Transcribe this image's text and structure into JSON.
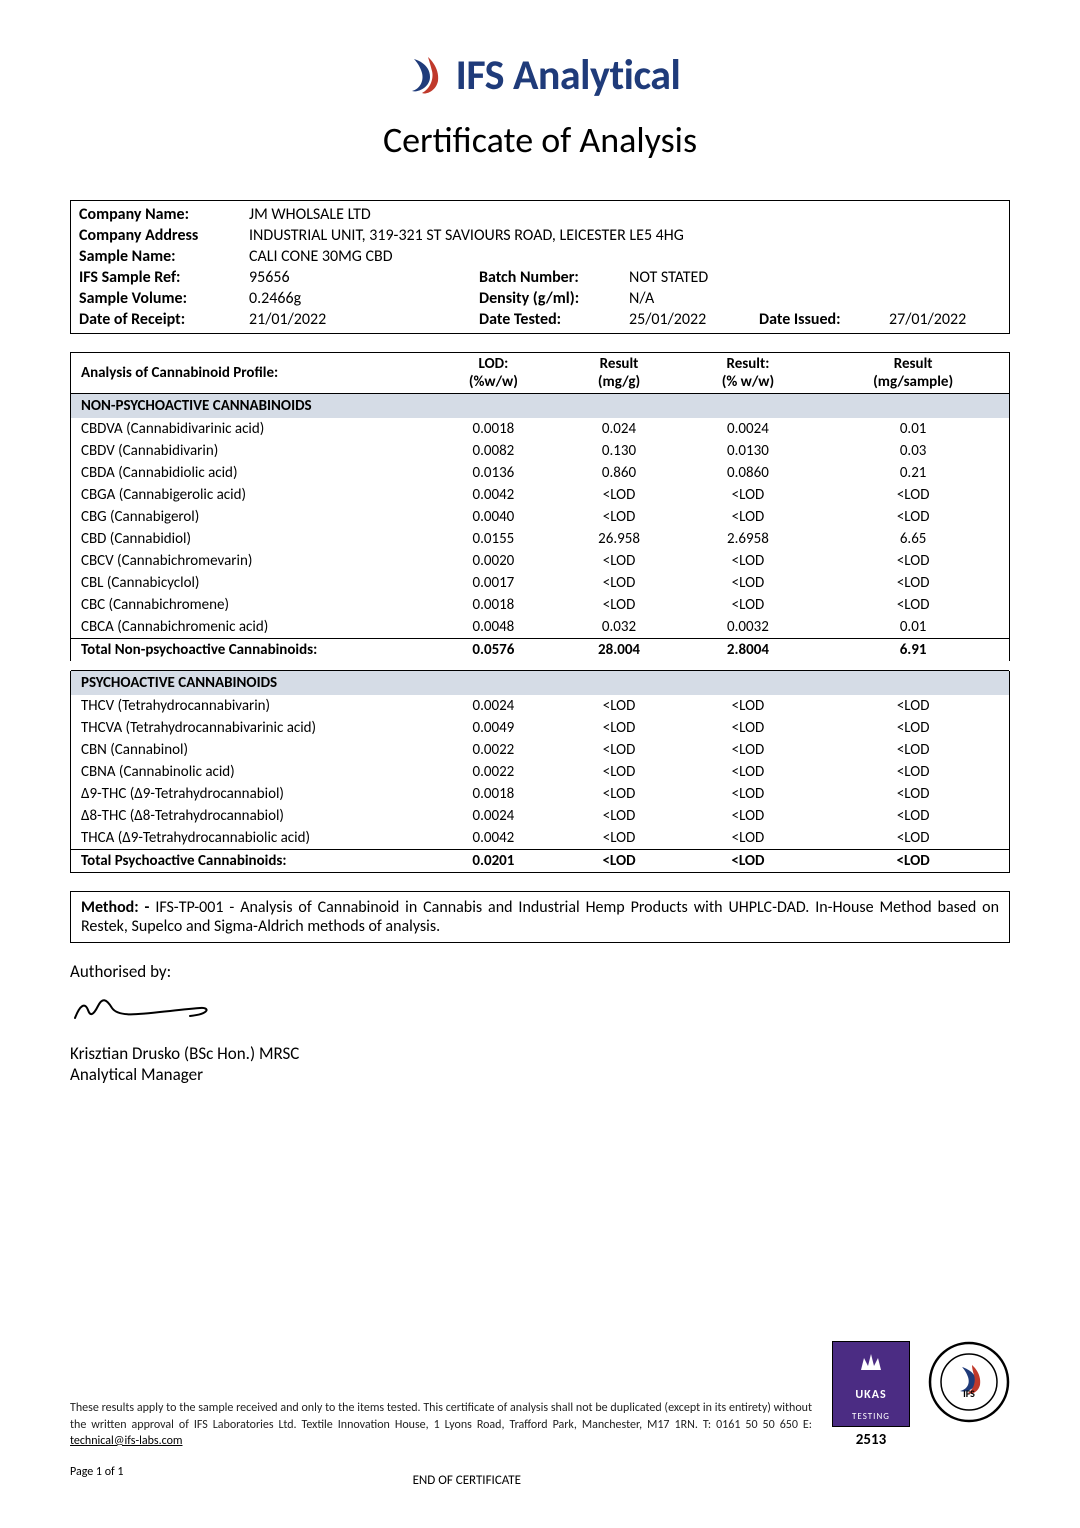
{
  "header": {
    "brand": "IFS Analytical",
    "subtitle": "Certificate of Analysis"
  },
  "info": {
    "company_name_label": "Company Name:",
    "company_name": "JM WHOLSALE LTD",
    "company_address_label": "Company Address",
    "company_address": "INDUSTRIAL UNIT, 319-321 ST SAVIOURS ROAD, LEICESTER LE5 4HG",
    "sample_name_label": "Sample Name:",
    "sample_name": "CALI CONE 30MG CBD",
    "ifs_ref_label": "IFS Sample Ref:",
    "ifs_ref": "95656",
    "batch_label": "Batch Number:",
    "batch": "NOT STATED",
    "volume_label": "Sample Volume:",
    "volume": "0.2466g",
    "density_label": "Density (g/ml):",
    "density": "N/A",
    "receipt_label": "Date of Receipt:",
    "receipt": "21/01/2022",
    "tested_label": "Date Tested:",
    "tested": "25/01/2022",
    "issued_label": "Date Issued:",
    "issued": "27/01/2022"
  },
  "table": {
    "title": "Analysis of Cannabinoid Profile:",
    "cols": {
      "lod_a": "LOD:",
      "lod_b": "(%w/w)",
      "r1_a": "Result",
      "r1_b": "(mg/g)",
      "r2_a": "Result:",
      "r2_b": "(% w/w)",
      "r3_a": "Result",
      "r3_b": "(mg/sample)"
    },
    "section1": "NON-PSYCHOACTIVE CANNABINOIDS",
    "rows1": [
      {
        "n": "CBDVA (Cannabidivarinic acid)",
        "lod": "0.0018",
        "a": "0.024",
        "b": "0.0024",
        "c": "0.01"
      },
      {
        "n": "CBDV (Cannabidivarin)",
        "lod": "0.0082",
        "a": "0.130",
        "b": "0.0130",
        "c": "0.03"
      },
      {
        "n": "CBDA (Cannabidiolic acid)",
        "lod": "0.0136",
        "a": "0.860",
        "b": "0.0860",
        "c": "0.21"
      },
      {
        "n": "CBGA (Cannabigerolic acid)",
        "lod": "0.0042",
        "a": "<LOD",
        "b": "<LOD",
        "c": "<LOD"
      },
      {
        "n": "CBG (Cannabigerol)",
        "lod": "0.0040",
        "a": "<LOD",
        "b": "<LOD",
        "c": "<LOD"
      },
      {
        "n": "CBD (Cannabidiol)",
        "lod": "0.0155",
        "a": "26.958",
        "b": "2.6958",
        "c": "6.65"
      },
      {
        "n": "CBCV (Cannabichromevarin)",
        "lod": "0.0020",
        "a": "<LOD",
        "b": "<LOD",
        "c": "<LOD"
      },
      {
        "n": "CBL (Cannabicyclol)",
        "lod": "0.0017",
        "a": "<LOD",
        "b": "<LOD",
        "c": "<LOD"
      },
      {
        "n": "CBC (Cannabichromene)",
        "lod": "0.0018",
        "a": "<LOD",
        "b": "<LOD",
        "c": "<LOD"
      },
      {
        "n": "CBCA (Cannabichromenic acid)",
        "lod": "0.0048",
        "a": "0.032",
        "b": "0.0032",
        "c": "0.01"
      }
    ],
    "total1": {
      "n": "Total Non-psychoactive Cannabinoids:",
      "lod": "0.0576",
      "a": "28.004",
      "b": "2.8004",
      "c": "6.91"
    },
    "section2": "PSYCHOACTIVE CANNABINOIDS",
    "rows2": [
      {
        "n": "THCV (Tetrahydrocannabivarin)",
        "lod": "0.0024",
        "a": "<LOD",
        "b": "<LOD",
        "c": "<LOD"
      },
      {
        "n": "THCVA (Tetrahydrocannabivarinic acid)",
        "lod": "0.0049",
        "a": "<LOD",
        "b": "<LOD",
        "c": "<LOD"
      },
      {
        "n": "CBN (Cannabinol)",
        "lod": "0.0022",
        "a": "<LOD",
        "b": "<LOD",
        "c": "<LOD"
      },
      {
        "n": "CBNA (Cannabinolic acid)",
        "lod": "0.0022",
        "a": "<LOD",
        "b": "<LOD",
        "c": "<LOD"
      },
      {
        "n": "Δ9-THC (Δ9-Tetrahydrocannabiol)",
        "lod": "0.0018",
        "a": "<LOD",
        "b": "<LOD",
        "c": "<LOD"
      },
      {
        "n": "Δ8-THC (Δ8-Tetrahydrocannabiol)",
        "lod": "0.0024",
        "a": "<LOD",
        "b": "<LOD",
        "c": "<LOD"
      },
      {
        "n": "THCA (Δ9-Tetrahydrocannabiolic acid)",
        "lod": "0.0042",
        "a": "<LOD",
        "b": "<LOD",
        "c": "<LOD"
      }
    ],
    "total2": {
      "n": "Total Psychoactive Cannabinoids:",
      "lod": "0.0201",
      "a": "<LOD",
      "b": "<LOD",
      "c": "<LOD"
    }
  },
  "method": {
    "label": "Method: -",
    "text": " IFS-TP-001 - Analysis of Cannabinoid in Cannabis and Industrial Hemp Products with UHPLC-DAD. In-House Method based on Restek, Supelco and Sigma-Aldrich methods of analysis."
  },
  "auth": {
    "label": "Authorised by:",
    "name": "Krisztian Drusko (BSc Hon.) MRSC",
    "title": "Analytical Manager"
  },
  "footer": {
    "disclaimer": "These results apply to the sample received and only to the items tested. This certificate of analysis shall not be duplicated (except in its entirety) without the written approval of IFS Laboratories Ltd. Textile Innovation House, 1 Lyons Road, Trafford Park, Manchester, M17 1RN. T: 0161 50 50 650 E: ",
    "email": "technical@ifs-labs.com",
    "end": "END OF CERTIFICATE",
    "page": "Page 1 of 1",
    "ukas_label": "UKAS",
    "ukas_sub": "TESTING",
    "ukas_num": "2513"
  },
  "colors": {
    "section_bg": "#d5dce6",
    "brand_blue": "#1f3b7a",
    "brand_red": "#c0392b",
    "ukas_purple": "#4b2c83"
  }
}
